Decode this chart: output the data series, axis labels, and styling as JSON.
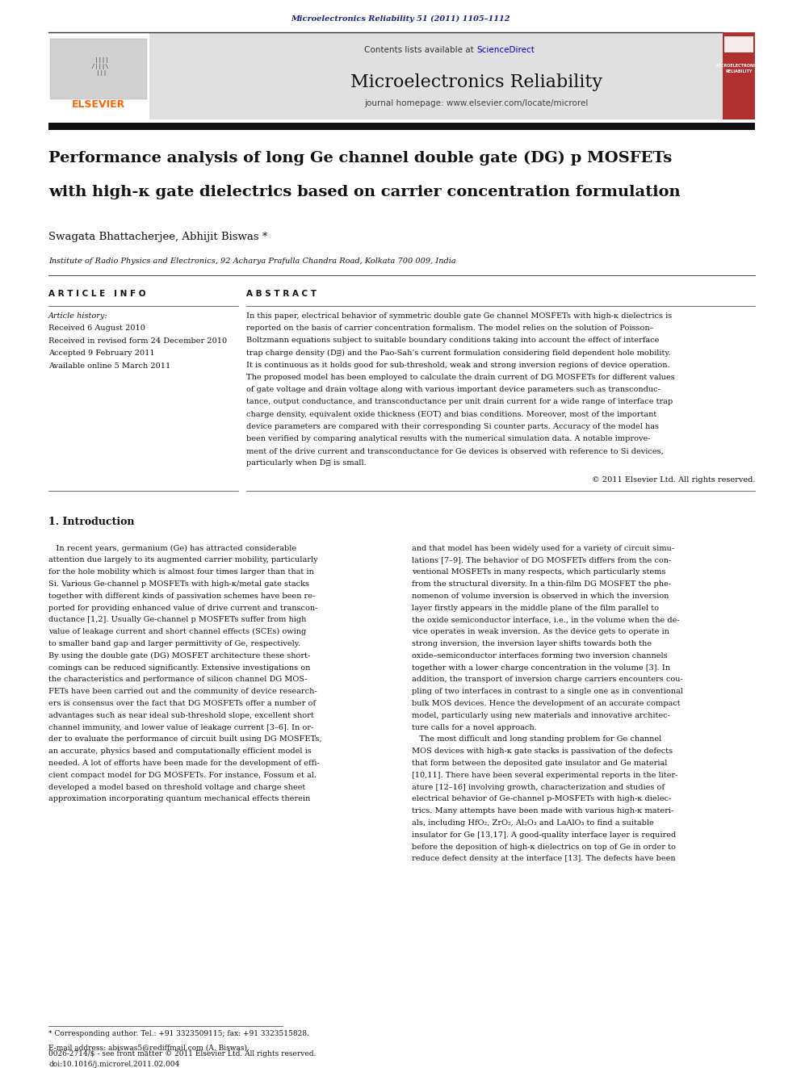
{
  "page_width": 9.92,
  "page_height": 13.23,
  "bg_color": "#ffffff",
  "top_journal_ref": "Microelectronics Reliability 51 (2011) 1105–1112",
  "top_journal_ref_color": "#1a237e",
  "header_bg": "#e0e0e0",
  "header_text_contents": "Contents lists available at ",
  "header_text_sd": "ScienceDirect",
  "header_sd_color": "#0000cc",
  "journal_title": "Microelectronics Reliability",
  "journal_homepage": "journal homepage: www.elsevier.com/locate/microrel",
  "elsevier_color": "#ff6600",
  "thick_bar_color": "#111111",
  "paper_title_line1": "Performance analysis of long Ge channel double gate (DG) p MOSFETs",
  "paper_title_line2": "with high-κ gate dielectrics based on carrier concentration formulation",
  "authors": "Swagata Bhattacherjee, Abhijit Biswas",
  "affiliation": "Institute of Radio Physics and Electronics, 92 Acharya Prafulla Chandra Road, Kolkata 700 009, India",
  "article_info_title": "A R T I C L E   I N F O",
  "abstract_title": "A B S T R A C T",
  "article_history_label": "Article history:",
  "received": "Received 6 August 2010",
  "received_revised": "Received in revised form 24 December 2010",
  "accepted": "Accepted 9 February 2011",
  "available": "Available online 5 March 2011",
  "abstract_text_lines": [
    "In this paper, electrical behavior of symmetric double gate Ge channel MOSFETs with high-κ dielectrics is",
    "reported on the basis of carrier concentration formalism. The model relies on the solution of Poisson–",
    "Boltzmann equations subject to suitable boundary conditions taking into account the effect of interface",
    "trap charge density (Dᴟ) and the Pao-Sah’s current formulation considering field dependent hole mobility.",
    "It is continuous as it holds good for sub-threshold, weak and strong inversion regions of device operation.",
    "The proposed model has been employed to calculate the drain current of DG MOSFETs for different values",
    "of gate voltage and drain voltage along with various important device parameters such as transconduc-",
    "tance, output conductance, and transconductance per unit drain current for a wide range of interface trap",
    "charge density, equivalent oxide thickness (EOT) and bias conditions. Moreover, most of the important",
    "device parameters are compared with their corresponding Si counter parts. Accuracy of the model has",
    "been verified by comparing analytical results with the numerical simulation data. A notable improve-",
    "ment of the drive current and transconductance for Ge devices is observed with reference to Si devices,",
    "particularly when Dᴟ is small."
  ],
  "copyright": "© 2011 Elsevier Ltd. All rights reserved.",
  "intro_title": "1. Introduction",
  "intro_col1_lines": [
    "   In recent years, germanium (Ge) has attracted considerable",
    "attention due largely to its augmented carrier mobility, particularly",
    "for the hole mobility which is almost four times larger than that in",
    "Si. Various Ge-channel p MOSFETs with high-κ/metal gate stacks",
    "together with different kinds of passivation schemes have been re-",
    "ported for providing enhanced value of drive current and transcon-",
    "ductance [1,2]. Usually Ge-channel p MOSFETs suffer from high",
    "value of leakage current and short channel effects (SCEs) owing",
    "to smaller band gap and larger permittivity of Ge, respectively.",
    "By using the double gate (DG) MOSFET architecture these short-",
    "comings can be reduced significantly. Extensive investigations on",
    "the characteristics and performance of silicon channel DG MOS-",
    "FETs have been carried out and the community of device research-",
    "ers is consensus over the fact that DG MOSFETs offer a number of",
    "advantages such as near ideal sub-threshold slope, excellent short",
    "channel immunity, and lower value of leakage current [3–6]. In or-",
    "der to evaluate the performance of circuit built using DG MOSFETs,",
    "an accurate, physics based and computationally efficient model is",
    "needed. A lot of efforts have been made for the development of effi-",
    "cient compact model for DG MOSFETs. For instance, Fossum et al.",
    "developed a model based on threshold voltage and charge sheet",
    "approximation incorporating quantum mechanical effects therein"
  ],
  "intro_col2_lines": [
    "and that model has been widely used for a variety of circuit simu-",
    "lations [7–9]. The behavior of DG MOSFETs differs from the con-",
    "ventional MOSFETs in many respects, which particularly stems",
    "from the structural diversity. In a thin-film DG MOSFET the phe-",
    "nomenon of volume inversion is observed in which the inversion",
    "layer firstly appears in the middle plane of the film parallel to",
    "the oxide semiconductor interface, i.e., in the volume when the de-",
    "vice operates in weak inversion. As the device gets to operate in",
    "strong inversion, the inversion layer shifts towards both the",
    "oxide–semiconductor interfaces forming two inversion channels",
    "together with a lower charge concentration in the volume [3]. In",
    "addition, the transport of inversion charge carriers encounters cou-",
    "pling of two interfaces in contrast to a single one as in conventional",
    "bulk MOS devices. Hence the development of an accurate compact",
    "model, particularly using new materials and innovative architec-",
    "ture calls for a novel approach.",
    "   The most difficult and long standing problem for Ge channel",
    "MOS devices with high-κ gate stacks is passivation of the defects",
    "that form between the deposited gate insulator and Ge material",
    "[10,11]. There have been several experimental reports in the liter-",
    "ature [12–16] involving growth, characterization and studies of",
    "electrical behavior of Ge-channel p-MOSFETs with high-κ dielec-",
    "trics. Many attempts have been made with various high-κ materi-",
    "als, including HfO₂, ZrO₂, Al₂O₃ and LaAlO₃ to find a suitable",
    "insulator for Ge [13,17]. A good-quality interface layer is required",
    "before the deposition of high-κ dielectrics on top of Ge in order to",
    "reduce defect density at the interface [13]. The defects have been"
  ],
  "footnote_star": "* Corresponding author. Tel.: +91 3323509115; fax: +91 3323515828.",
  "footnote_email": "E-mail address: abiswas5@rediffmail.com (A. Biswas).",
  "bottom_line1": "0026-2714/$ - see front matter © 2011 Elsevier Ltd. All rights reserved.",
  "bottom_line2": "doi:10.1016/j.microrel.2011.02.004"
}
